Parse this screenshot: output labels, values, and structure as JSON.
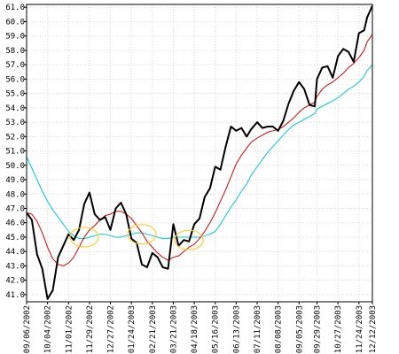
{
  "chart_data": {
    "type": "line",
    "title": "",
    "xlabel": "",
    "ylabel": "",
    "ylim": [
      40.5,
      61.2
    ],
    "y_ticks": [
      41.0,
      42.0,
      43.0,
      44.0,
      45.0,
      46.0,
      47.0,
      48.0,
      49.0,
      50.0,
      51.0,
      52.0,
      53.0,
      54.0,
      55.0,
      56.0,
      57.0,
      58.0,
      59.0,
      60.0,
      61.0
    ],
    "x_tick_labels": [
      "09/06/2002",
      "10/04/2002",
      "11/01/2002",
      "11/29/2002",
      "12/27/2002",
      "01/24/2003",
      "02/21/2003",
      "03/21/2003",
      "04/18/2003",
      "05/16/2003",
      "06/13/2003",
      "07/11/2003",
      "08/08/2003",
      "09/05/2003",
      "09/29/2003",
      "10/27/2003",
      "11/24/2003",
      "12/12/2003"
    ],
    "grid": true,
    "legend": "none",
    "series": [
      {
        "color": "#000000",
        "x": [
          "09/06/2002",
          "09/13/2002",
          "09/20/2002",
          "09/27/2002",
          "10/04/2002",
          "10/11/2002",
          "10/18/2002",
          "10/25/2002",
          "11/01/2002",
          "11/08/2002",
          "11/15/2002",
          "11/22/2002",
          "11/29/2002",
          "12/06/2002",
          "12/13/2002",
          "12/20/2002",
          "12/27/2002",
          "01/03/2003",
          "01/10/2003",
          "01/17/2003",
          "01/24/2003",
          "01/31/2003",
          "02/07/2003",
          "02/14/2003",
          "02/21/2003",
          "02/28/2003",
          "03/07/2003",
          "03/14/2003",
          "03/21/2003",
          "03/28/2003",
          "04/04/2003",
          "04/11/2003",
          "04/18/2003",
          "04/25/2003",
          "05/02/2003",
          "05/09/2003",
          "05/16/2003",
          "05/23/2003",
          "05/30/2003",
          "06/06/2003",
          "06/13/2003",
          "06/20/2003",
          "06/27/2003",
          "07/03/2003",
          "07/11/2003",
          "07/18/2003",
          "07/25/2003",
          "08/01/2003",
          "08/08/2003",
          "08/15/2003",
          "08/22/2003",
          "08/29/2003",
          "09/05/2003",
          "09/12/2003",
          "09/19/2003",
          "09/26/2003",
          "09/29/2003",
          "10/06/2003",
          "10/13/2003",
          "10/20/2003",
          "10/27/2003",
          "11/03/2003",
          "11/10/2003",
          "11/17/2003",
          "11/24/2003",
          "12/01/2003",
          "12/05/2003",
          "12/12/2003"
        ],
        "y": [
          46.7,
          46.2,
          43.8,
          42.8,
          40.7,
          41.3,
          43.6,
          44.4,
          45.2,
          44.8,
          45.5,
          47.3,
          48.1,
          46.6,
          46.2,
          46.4,
          45.5,
          47.0,
          47.4,
          46.6,
          44.9,
          44.6,
          43.1,
          42.9,
          43.9,
          43.6,
          42.9,
          42.8,
          45.9,
          44.4,
          44.8,
          44.7,
          45.9,
          46.3,
          47.8,
          48.4,
          49.9,
          49.7,
          51.3,
          52.7,
          52.4,
          52.6,
          52.0,
          52.5,
          53.0,
          52.6,
          52.7,
          52.7,
          52.4,
          53.1,
          54.3,
          55.2,
          55.8,
          55.3,
          54.2,
          54.1,
          56.0,
          56.8,
          56.9,
          56.1,
          57.6,
          58.1,
          57.9,
          57.2,
          59.2,
          59.4,
          60.3,
          61.1
        ]
      },
      {
        "color": "#dd0000",
        "x": [
          "09/06/2002",
          "09/13/2002",
          "09/20/2002",
          "09/27/2002",
          "10/04/2002",
          "10/11/2002",
          "10/18/2002",
          "10/25/2002",
          "11/01/2002",
          "11/08/2002",
          "11/15/2002",
          "11/22/2002",
          "11/29/2002",
          "12/06/2002",
          "12/13/2002",
          "12/20/2002",
          "12/27/2002",
          "01/03/2003",
          "01/10/2003",
          "01/17/2003",
          "01/24/2003",
          "01/31/2003",
          "02/07/2003",
          "02/14/2003",
          "02/21/2003",
          "02/28/2003",
          "03/07/2003",
          "03/14/2003",
          "03/21/2003",
          "03/28/2003",
          "04/04/2003",
          "04/11/2003",
          "04/18/2003",
          "04/25/2003",
          "05/02/2003",
          "05/09/2003",
          "05/16/2003",
          "05/23/2003",
          "05/30/2003",
          "06/06/2003",
          "06/13/2003",
          "06/20/2003",
          "06/27/2003",
          "07/03/2003",
          "07/11/2003",
          "07/18/2003",
          "07/25/2003",
          "08/01/2003",
          "08/08/2003",
          "08/15/2003",
          "08/22/2003",
          "08/29/2003",
          "09/05/2003",
          "09/12/2003",
          "09/19/2003",
          "09/26/2003",
          "09/29/2003",
          "10/06/2003",
          "10/13/2003",
          "10/20/2003",
          "10/27/2003",
          "11/03/2003",
          "11/10/2003",
          "11/17/2003",
          "11/24/2003",
          "12/01/2003",
          "12/05/2003",
          "12/12/2003"
        ],
        "y": [
          46.7,
          46.6,
          46.1,
          45.3,
          44.3,
          43.5,
          43.1,
          43.0,
          43.2,
          43.6,
          44.3,
          45.0,
          45.5,
          45.8,
          46.2,
          46.5,
          46.6,
          46.8,
          46.8,
          46.6,
          46.3,
          45.8,
          45.3,
          44.7,
          44.3,
          43.9,
          43.6,
          43.4,
          43.6,
          43.7,
          44.0,
          44.3,
          44.5,
          44.9,
          45.4,
          46.0,
          46.7,
          47.5,
          48.3,
          49.2,
          50.1,
          50.7,
          51.2,
          51.6,
          51.9,
          52.1,
          52.3,
          52.4,
          52.5,
          52.7,
          53.0,
          53.3,
          53.7,
          54.0,
          54.2,
          54.4,
          54.8,
          55.3,
          55.6,
          55.8,
          56.1,
          56.4,
          56.8,
          57.1,
          57.5,
          58.0,
          58.6,
          59.1
        ]
      },
      {
        "color": "#00c8dc",
        "x": [
          "09/06/2002",
          "09/13/2002",
          "09/20/2002",
          "09/27/2002",
          "10/04/2002",
          "10/11/2002",
          "10/18/2002",
          "10/25/2002",
          "11/01/2002",
          "11/08/2002",
          "11/15/2002",
          "11/22/2002",
          "11/29/2002",
          "12/06/2002",
          "12/13/2002",
          "12/20/2002",
          "12/27/2002",
          "01/03/2003",
          "01/10/2003",
          "01/17/2003",
          "01/24/2003",
          "01/31/2003",
          "02/07/2003",
          "02/14/2003",
          "02/21/2003",
          "02/28/2003",
          "03/07/2003",
          "03/14/2003",
          "03/21/2003",
          "03/28/2003",
          "04/04/2003",
          "04/11/2003",
          "04/18/2003",
          "04/25/2003",
          "05/02/2003",
          "05/09/2003",
          "05/16/2003",
          "05/23/2003",
          "05/30/2003",
          "06/06/2003",
          "06/13/2003",
          "06/20/2003",
          "06/27/2003",
          "07/03/2003",
          "07/11/2003",
          "07/18/2003",
          "07/25/2003",
          "08/01/2003",
          "08/08/2003",
          "08/15/2003",
          "08/22/2003",
          "08/29/2003",
          "09/05/2003",
          "09/12/2003",
          "09/19/2003",
          "09/26/2003",
          "09/29/2003",
          "10/06/2003",
          "10/13/2003",
          "10/20/2003",
          "10/27/2003",
          "11/03/2003",
          "11/10/2003",
          "11/17/2003",
          "11/24/2003",
          "12/01/2003",
          "12/05/2003",
          "12/12/2003"
        ],
        "y": [
          50.6,
          49.8,
          49.0,
          48.2,
          47.5,
          46.9,
          46.4,
          45.9,
          45.4,
          45.1,
          44.9,
          44.9,
          45.0,
          45.1,
          45.2,
          45.2,
          45.1,
          45.0,
          45.0,
          45.1,
          45.2,
          45.3,
          45.3,
          45.2,
          45.1,
          45.0,
          44.9,
          44.9,
          45.0,
          45.0,
          45.0,
          45.0,
          45.0,
          45.0,
          45.1,
          45.2,
          45.4,
          45.9,
          46.5,
          47.1,
          47.6,
          48.2,
          48.7,
          49.3,
          49.9,
          50.4,
          50.9,
          51.3,
          51.7,
          52.1,
          52.5,
          52.8,
          53.0,
          53.2,
          53.4,
          53.6,
          53.9,
          54.1,
          54.3,
          54.5,
          54.7,
          55.0,
          55.3,
          55.5,
          55.8,
          56.2,
          56.6,
          57.0
        ]
      }
    ],
    "highlight_ellipses": [
      {
        "x": "11/22/2002",
        "y": 45.0,
        "color": "#ffcc33"
      },
      {
        "x": "02/07/2003",
        "y": 45.2,
        "color": "#ffcc33"
      },
      {
        "x": "04/11/2003",
        "y": 44.8,
        "color": "#ffcc33"
      }
    ]
  }
}
